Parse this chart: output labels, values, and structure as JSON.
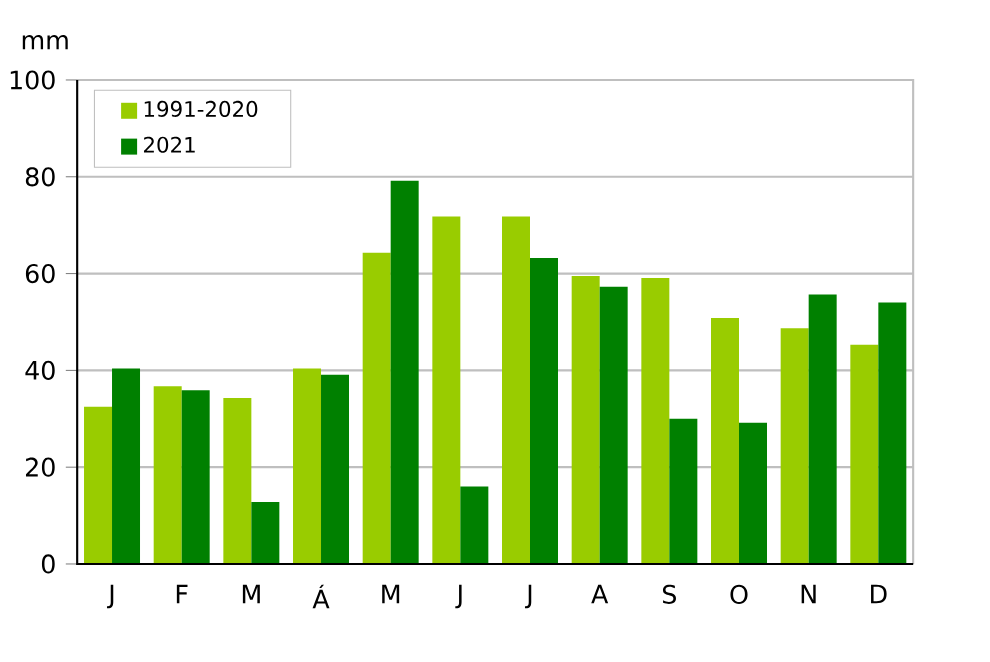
{
  "chart_data": {
    "type": "bar",
    "ylabel": "mm",
    "categories": [
      "J",
      "F",
      "M",
      "Á",
      "M",
      "J",
      "J",
      "A",
      "S",
      "O",
      "N",
      "D"
    ],
    "series": [
      {
        "name": "1991-2020",
        "color": "#99cc00",
        "values": [
          32.5,
          36.7,
          34.3,
          40.4,
          64.3,
          71.8,
          71.8,
          59.5,
          59.1,
          50.8,
          48.7,
          45.3
        ]
      },
      {
        "name": "2021",
        "color": "#008000",
        "values": [
          40.4,
          35.9,
          12.8,
          39.1,
          79.2,
          16.0,
          63.2,
          57.3,
          30.0,
          29.2,
          55.7,
          54.0
        ]
      }
    ],
    "ylim": [
      0,
      100
    ],
    "yticks": [
      0,
      20,
      40,
      60,
      80,
      100
    ],
    "grid": "y",
    "legend": "top left"
  }
}
